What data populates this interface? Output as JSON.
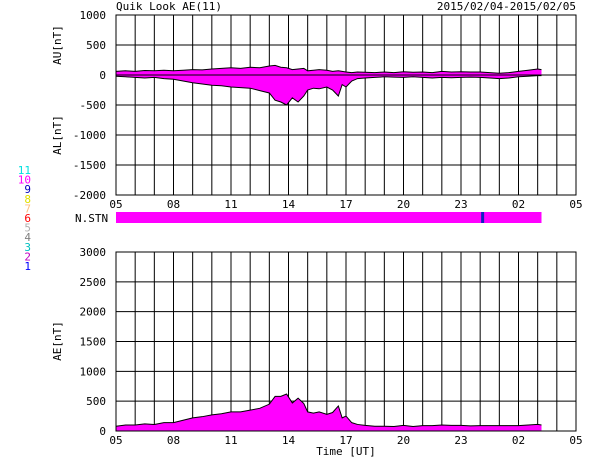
{
  "header": {
    "title": "Quik Look AE(11)",
    "date_range": "2015/02/04-2015/02/05"
  },
  "colors": {
    "fill": "#ff00ff",
    "bar_marker": "#1020c0",
    "grid": "#000000",
    "line": "#000000"
  },
  "station_legend": [
    {
      "label": "11",
      "color": "#00e0e0"
    },
    {
      "label": "10",
      "color": "#ff00ff"
    },
    {
      "label": "9",
      "color": "#0000c0"
    },
    {
      "label": "8",
      "color": "#e0e000"
    },
    {
      "label": "7",
      "color": "#ffc080"
    },
    {
      "label": "6",
      "color": "#ff0000"
    },
    {
      "label": "5",
      "color": "#b0b0b0"
    },
    {
      "label": "4",
      "color": "#808080"
    },
    {
      "label": "3",
      "color": "#00c0c0"
    },
    {
      "label": "2",
      "color": "#c000c0"
    },
    {
      "label": "1",
      "color": "#0000ff"
    }
  ],
  "station_bar": {
    "label": "N.STN",
    "coverage_end_hour": 27.2,
    "marker_hour": 24.05
  },
  "chart_data": [
    {
      "type": "area",
      "name": "AU/AL",
      "ylabel_top": "AU[nT]",
      "ylabel_bottom": "AL[nT]",
      "ylim": [
        -2000,
        1000
      ],
      "yticks": [
        1000,
        500,
        0,
        -500,
        -1000,
        -1500,
        -2000
      ],
      "xlim": [
        5,
        29
      ],
      "xtick_labels": [
        "05",
        "08",
        "11",
        "14",
        "17",
        "20",
        "23",
        "02",
        "05"
      ],
      "grid": true,
      "x_hours": [
        5,
        5.5,
        6,
        6.5,
        7,
        7.5,
        8,
        8.5,
        9,
        9.5,
        10,
        10.5,
        11,
        11.5,
        12,
        12.5,
        13,
        13.3,
        13.6,
        13.9,
        14.2,
        14.5,
        14.8,
        15,
        15.3,
        15.6,
        16,
        16.3,
        16.6,
        16.8,
        17,
        17.3,
        17.6,
        18,
        18.5,
        19,
        19.5,
        20,
        20.5,
        21,
        21.5,
        22,
        22.5,
        23,
        23.5,
        24,
        24.5,
        25,
        25.5,
        26,
        26.5,
        27,
        27.2
      ],
      "au": [
        60,
        70,
        60,
        75,
        70,
        80,
        70,
        80,
        90,
        85,
        100,
        110,
        120,
        110,
        130,
        120,
        150,
        160,
        130,
        120,
        90,
        100,
        110,
        70,
        80,
        90,
        80,
        60,
        70,
        60,
        50,
        40,
        50,
        45,
        40,
        50,
        40,
        55,
        45,
        50,
        40,
        60,
        50,
        55,
        50,
        50,
        40,
        30,
        40,
        60,
        80,
        100,
        90
      ],
      "al": [
        -20,
        -30,
        -40,
        -50,
        -40,
        -60,
        -70,
        -100,
        -130,
        -150,
        -170,
        -180,
        -200,
        -210,
        -220,
        -260,
        -300,
        -420,
        -450,
        -500,
        -380,
        -450,
        -350,
        -250,
        -220,
        -230,
        -200,
        -250,
        -350,
        -160,
        -200,
        -100,
        -60,
        -50,
        -40,
        -30,
        -35,
        -40,
        -30,
        -40,
        -50,
        -40,
        -45,
        -40,
        -35,
        -40,
        -50,
        -60,
        -50,
        -30,
        -20,
        -10,
        -10
      ]
    },
    {
      "type": "area",
      "name": "AE",
      "ylabel": "AE[nT]",
      "xlabel": "Time [UT]",
      "ylim": [
        0,
        3000
      ],
      "yticks": [
        3000,
        2500,
        2000,
        1500,
        1000,
        500,
        0
      ],
      "xlim": [
        5,
        29
      ],
      "xtick_labels": [
        "05",
        "08",
        "11",
        "14",
        "17",
        "20",
        "23",
        "02",
        "05"
      ],
      "grid": true,
      "x_hours": [
        5,
        5.5,
        6,
        6.5,
        7,
        7.5,
        8,
        8.5,
        9,
        9.5,
        10,
        10.5,
        11,
        11.5,
        12,
        12.5,
        13,
        13.3,
        13.6,
        13.9,
        14.2,
        14.5,
        14.8,
        15,
        15.3,
        15.6,
        16,
        16.3,
        16.6,
        16.8,
        17,
        17.3,
        17.6,
        18,
        18.5,
        19,
        19.5,
        20,
        20.5,
        21,
        21.5,
        22,
        22.5,
        23,
        23.5,
        24,
        24.5,
        25,
        25.5,
        26,
        26.5,
        27,
        27.2
      ],
      "values": [
        80,
        100,
        100,
        120,
        110,
        140,
        140,
        180,
        220,
        240,
        270,
        290,
        320,
        320,
        350,
        380,
        450,
        580,
        580,
        620,
        470,
        550,
        460,
        320,
        300,
        320,
        280,
        310,
        420,
        220,
        250,
        140,
        110,
        95,
        80,
        80,
        75,
        95,
        75,
        90,
        90,
        100,
        95,
        95,
        85,
        90,
        90,
        90,
        90,
        90,
        100,
        110,
        100
      ]
    }
  ]
}
